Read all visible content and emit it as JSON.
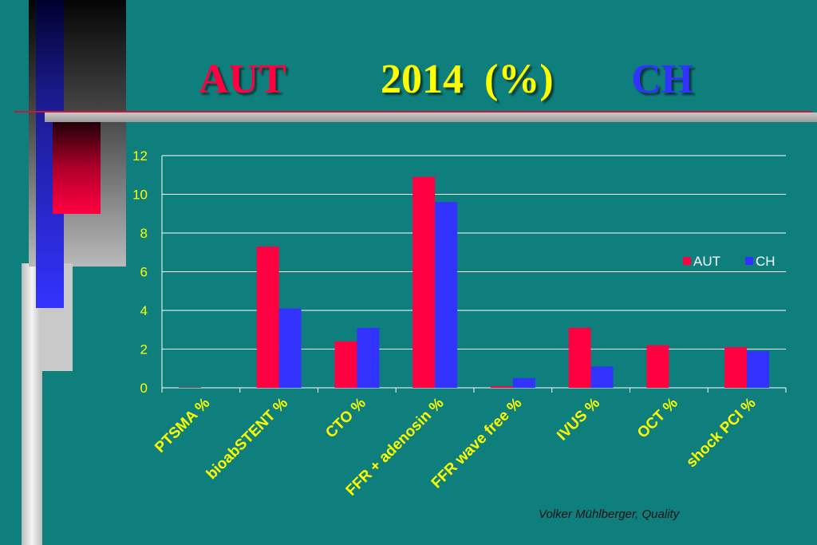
{
  "slide": {
    "title": {
      "left": "AUT",
      "center": "2014  (%)",
      "right": "CH"
    },
    "footer": "Volker Mühlberger, Quality"
  },
  "colors": {
    "background": "#0e7f7c",
    "aut": "#ff0040",
    "ch": "#3333ff",
    "title_center": "#ffff00",
    "axis_text": "#ffff00",
    "gridline": "#ffffff"
  },
  "chart_data": {
    "type": "bar",
    "title": "",
    "xlabel": "",
    "ylabel": "",
    "ylim": [
      0,
      12
    ],
    "yticks": [
      0,
      2,
      4,
      6,
      8,
      10,
      12
    ],
    "grid": true,
    "legend_position": "right",
    "categories": [
      "PTSMA %",
      "bioabSTENT %",
      "CTO %",
      "FFR + adenosin %",
      "FFR wave free %",
      "IVUS %",
      "OCT %",
      "shock PCI %"
    ],
    "series": [
      {
        "name": "AUT",
        "values": [
          0.02,
          7.3,
          2.4,
          10.9,
          0.08,
          3.1,
          2.2,
          2.1
        ]
      },
      {
        "name": "CH",
        "values": [
          0,
          4.1,
          3.1,
          9.6,
          0.5,
          1.1,
          0,
          1.9
        ]
      }
    ]
  }
}
